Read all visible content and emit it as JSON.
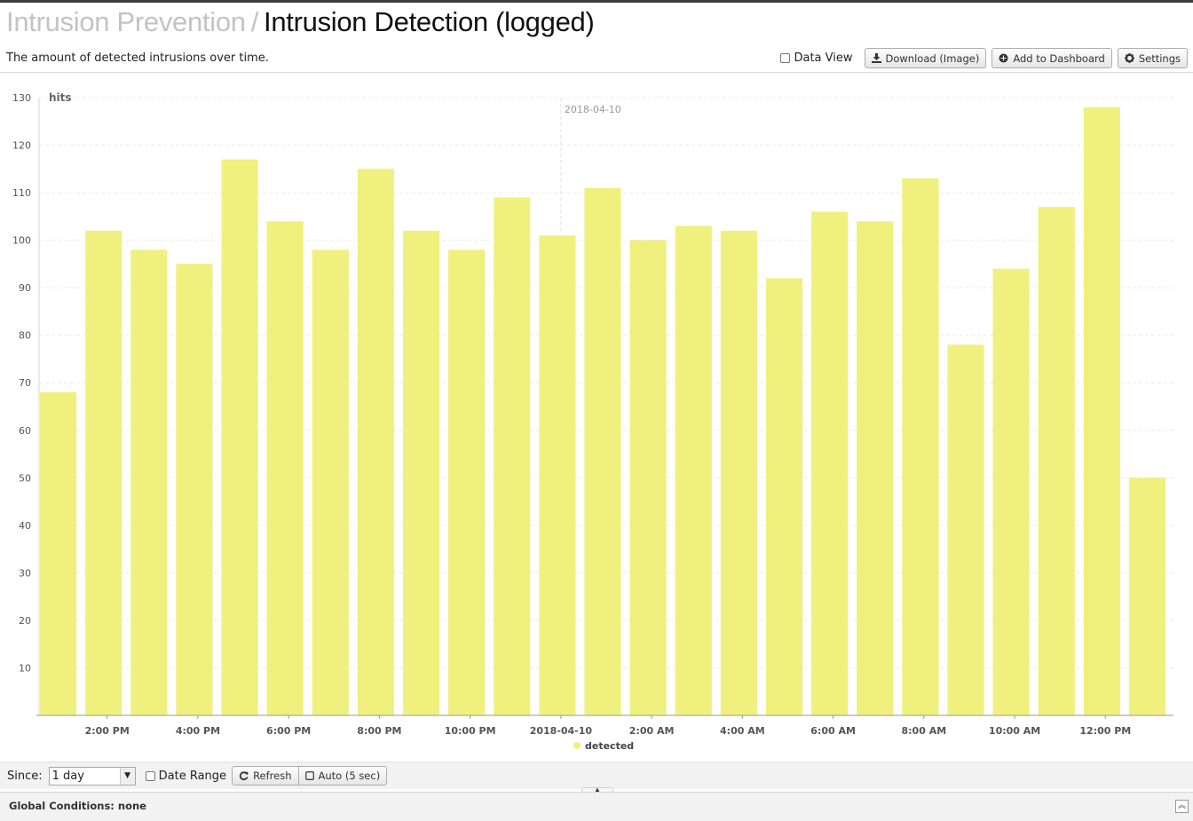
{
  "header": {
    "breadcrumb_parent": "Intrusion Prevention",
    "separator": "/",
    "title": "Intrusion Detection (logged)",
    "subtitle": "The amount of detected intrusions over time."
  },
  "toolbar": {
    "data_view_label": "Data View",
    "data_view_checked": false,
    "download_label": "Download (Image)",
    "download_icon": "download-icon",
    "dashboard_label": "Add to Dashboard",
    "dashboard_icon": "plus-circle-icon",
    "settings_label": "Settings",
    "settings_icon": "gear-icon"
  },
  "chart_data": {
    "type": "bar",
    "ylabel": "hits",
    "ylim": [
      0,
      130
    ],
    "yticks": [
      10,
      20,
      30,
      40,
      50,
      60,
      70,
      80,
      90,
      100,
      110,
      120,
      130
    ],
    "xtick_labels": [
      "2:00 PM",
      "4:00 PM",
      "6:00 PM",
      "8:00 PM",
      "10:00 PM",
      "2018-04-10",
      "2:00 AM",
      "4:00 AM",
      "6:00 AM",
      "8:00 AM",
      "10:00 AM",
      "12:00 PM"
    ],
    "date_marker": "2018-04-10",
    "series": [
      {
        "name": "detected",
        "color": "#f0f07e",
        "values": [
          68,
          102,
          98,
          95,
          117,
          104,
          98,
          115,
          102,
          98,
          109,
          101,
          111,
          100,
          103,
          102,
          92,
          106,
          104,
          113,
          78,
          94,
          107,
          128,
          50
        ]
      }
    ],
    "grid": true,
    "legend": "bottom-center"
  },
  "controls": {
    "since_label": "Since:",
    "since_value": "1 day",
    "date_range_label": "Date Range",
    "date_range_checked": false,
    "refresh_label": "Refresh",
    "refresh_icon": "refresh-icon",
    "auto_label": "Auto (5 sec)",
    "auto_icon": "square-icon"
  },
  "footer": {
    "global_conditions": "Global Conditions: none",
    "collapse_icon": "chevron-up-double-icon"
  }
}
